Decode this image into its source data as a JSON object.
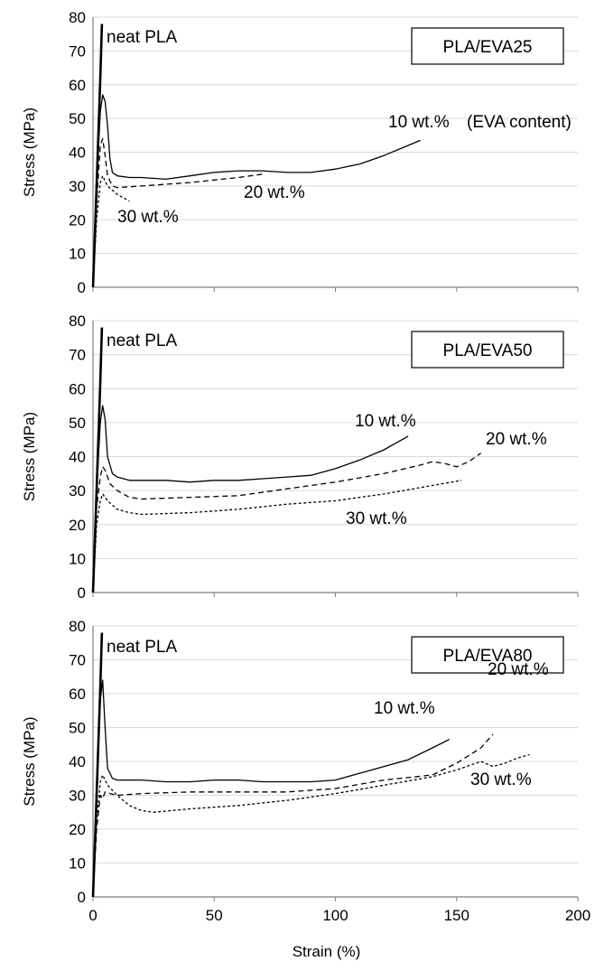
{
  "chart_data": [
    {
      "type": "line",
      "title": "PLA/EVA25",
      "xlabel": "",
      "ylabel": "Stress (MPa)",
      "xlim": [
        0,
        200
      ],
      "ylim": [
        0,
        80
      ],
      "xticks": [],
      "yticks": [
        0,
        10,
        20,
        30,
        40,
        50,
        60,
        70,
        80
      ],
      "grid": "horizontal",
      "series": [
        {
          "name": "neat PLA",
          "style": "solid-thick",
          "x": [
            0,
            1,
            2,
            3,
            3.7
          ],
          "y": [
            0,
            20,
            41,
            62,
            78
          ]
        },
        {
          "name": "10 wt.%",
          "style": "solid",
          "x": [
            0,
            1.5,
            3,
            4,
            5,
            6,
            7,
            8,
            10,
            15,
            20,
            30,
            35,
            40,
            50,
            60,
            70,
            80,
            90,
            100,
            110,
            120,
            130,
            135
          ],
          "y": [
            0,
            30,
            52,
            57,
            55,
            48,
            38,
            34,
            33,
            32.5,
            32.5,
            32,
            32.5,
            33,
            34,
            34.5,
            34.5,
            34,
            34,
            35,
            36.5,
            39,
            42,
            43.5
          ]
        },
        {
          "name": "20 wt.%",
          "style": "dashed",
          "x": [
            0,
            1.5,
            3,
            4,
            5,
            6,
            8,
            10,
            20,
            40,
            60,
            70
          ],
          "y": [
            0,
            25,
            42,
            44,
            39,
            33,
            30,
            29.5,
            30,
            31,
            32.5,
            33.5
          ]
        },
        {
          "name": "30 wt.%",
          "style": "dotted",
          "x": [
            0,
            1.5,
            3,
            4,
            6,
            10,
            15
          ],
          "y": [
            0,
            20,
            31,
            33,
            30,
            27.5,
            25.5
          ]
        }
      ],
      "annotations": [
        "neat PLA",
        "10 wt.%",
        "(EVA content)",
        "20 wt.%",
        "30 wt.%"
      ]
    },
    {
      "type": "line",
      "title": "PLA/EVA50",
      "xlabel": "",
      "ylabel": "Stress (MPa)",
      "xlim": [
        0,
        200
      ],
      "ylim": [
        0,
        80
      ],
      "xticks": [],
      "yticks": [
        0,
        10,
        20,
        30,
        40,
        50,
        60,
        70,
        80
      ],
      "grid": "horizontal",
      "series": [
        {
          "name": "neat PLA",
          "style": "solid-thick",
          "x": [
            0,
            1,
            2,
            3,
            3.7
          ],
          "y": [
            0,
            20,
            41,
            62,
            78
          ]
        },
        {
          "name": "10 wt.%",
          "style": "solid",
          "x": [
            0,
            1.5,
            3,
            4,
            5,
            6,
            8,
            10,
            15,
            20,
            30,
            40,
            50,
            60,
            70,
            80,
            90,
            100,
            110,
            120,
            125,
            130
          ],
          "y": [
            0,
            30,
            50,
            55,
            51,
            40,
            35,
            34,
            33,
            33,
            33,
            32.5,
            33,
            33,
            33.5,
            34,
            34.5,
            36.5,
            39,
            42,
            44,
            46
          ]
        },
        {
          "name": "20 wt.%",
          "style": "dashed",
          "x": [
            0,
            1.5,
            3,
            4,
            5,
            7,
            10,
            15,
            20,
            40,
            60,
            80,
            100,
            120,
            135,
            140,
            145,
            150,
            155,
            160
          ],
          "y": [
            0,
            25,
            34,
            37,
            36,
            32,
            30,
            28,
            27.5,
            28,
            28.5,
            30.5,
            32.5,
            35,
            37.5,
            38.5,
            38,
            37,
            38.5,
            41
          ]
        },
        {
          "name": "30 wt.%",
          "style": "dotted",
          "x": [
            0,
            1.5,
            3,
            4,
            6,
            10,
            15,
            20,
            40,
            60,
            80,
            100,
            120,
            140,
            152
          ],
          "y": [
            0,
            20,
            27,
            29,
            27,
            24.5,
            23.5,
            23,
            23.5,
            24.5,
            26,
            27,
            29,
            31.5,
            33
          ]
        }
      ],
      "annotations": [
        "neat PLA",
        "10 wt.%",
        "20 wt.%",
        "30 wt.%"
      ]
    },
    {
      "type": "line",
      "title": "PLA/EVA80",
      "xlabel": "Strain (%)",
      "ylabel": "Stress (MPa)",
      "xlim": [
        0,
        200
      ],
      "ylim": [
        0,
        80
      ],
      "xticks": [
        0,
        50,
        100,
        150,
        200
      ],
      "yticks": [
        0,
        10,
        20,
        30,
        40,
        50,
        60,
        70,
        80
      ],
      "grid": "horizontal",
      "series": [
        {
          "name": "neat PLA",
          "style": "solid-thick",
          "x": [
            0,
            1,
            2,
            3,
            3.7
          ],
          "y": [
            0,
            20,
            41,
            62,
            78
          ]
        },
        {
          "name": "10 wt.%",
          "style": "solid",
          "x": [
            0,
            1.5,
            3,
            4,
            5,
            6,
            8,
            10,
            20,
            30,
            40,
            50,
            60,
            70,
            80,
            90,
            100,
            110,
            120,
            130,
            140,
            147
          ],
          "y": [
            0,
            32,
            58,
            64,
            50,
            38,
            35,
            34.5,
            34.5,
            34,
            34,
            34.5,
            34.5,
            34,
            34,
            34,
            34.5,
            36.5,
            38.5,
            40.5,
            44,
            46.5
          ]
        },
        {
          "name": "20 wt.%",
          "style": "dashed",
          "x": [
            0,
            1.5,
            3,
            4,
            5,
            7,
            10,
            20,
            40,
            60,
            80,
            100,
            120,
            140,
            150,
            160,
            165
          ],
          "y": [
            0,
            20,
            30,
            29,
            31,
            30.5,
            30,
            30.5,
            31,
            31,
            31,
            32,
            34.5,
            36,
            39.5,
            44,
            48
          ]
        },
        {
          "name": "30 wt.%",
          "style": "dotted",
          "x": [
            0,
            1.5,
            3,
            4,
            6,
            10,
            15,
            20,
            25,
            40,
            60,
            80,
            100,
            120,
            140,
            150,
            160,
            165,
            170,
            175,
            180
          ],
          "y": [
            0,
            22,
            34,
            36,
            33,
            30,
            27,
            25.5,
            25,
            26,
            27,
            28.5,
            30.5,
            33,
            35.5,
            37.5,
            40,
            38.5,
            39.5,
            41,
            42
          ]
        }
      ],
      "annotations": [
        "neat PLA",
        "10 wt.%",
        "20 wt.%",
        "30 wt.%"
      ]
    }
  ]
}
